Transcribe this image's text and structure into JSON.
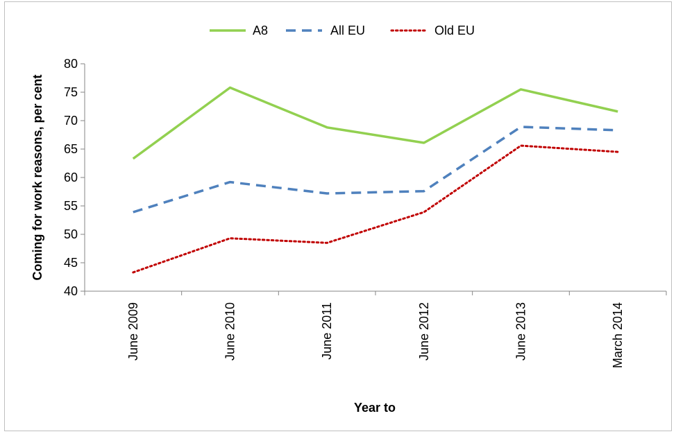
{
  "chart_data": {
    "type": "line",
    "categories": [
      "June 2009",
      "June 2010",
      "June 2011",
      "June 2012",
      "June 2013",
      "March 2014"
    ],
    "series": [
      {
        "name": "A8",
        "values": [
          63.3,
          75.8,
          68.8,
          66.1,
          75.5,
          71.6
        ],
        "color": "#92d050",
        "style": "solid"
      },
      {
        "name": "All EU",
        "values": [
          53.9,
          59.2,
          57.2,
          57.6,
          68.9,
          68.3
        ],
        "color": "#4f81bd",
        "style": "dashed"
      },
      {
        "name": "Old EU",
        "values": [
          43.3,
          49.3,
          48.5,
          53.9,
          65.6,
          64.5
        ],
        "color": "#c00000",
        "style": "dotted"
      }
    ],
    "yticks": [
      "40",
      "45",
      "50",
      "55",
      "60",
      "65",
      "70",
      "75",
      "80"
    ],
    "ylim": [
      40,
      80
    ],
    "xlabel": "Year to",
    "ylabel": "Coming for work reasons,  per cent",
    "legend_position": "top",
    "grid": false
  }
}
